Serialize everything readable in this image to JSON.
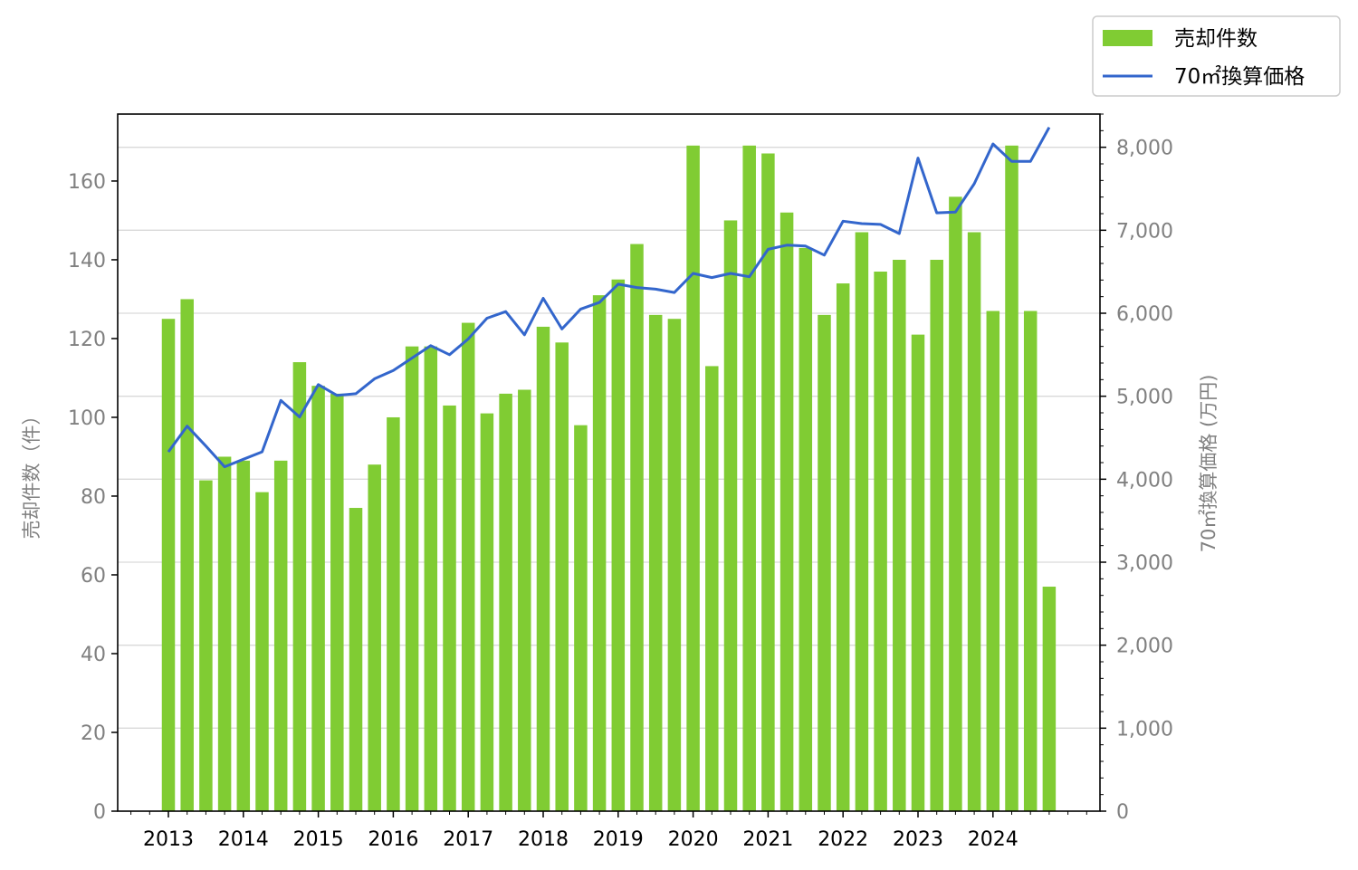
{
  "chart_data": {
    "type": "bar+line",
    "quarters_per_year": 4,
    "x_ticks": [
      "2013",
      "2014",
      "2015",
      "2016",
      "2017",
      "2018",
      "2019",
      "2020",
      "2021",
      "2022",
      "2023",
      "2024"
    ],
    "left_axis": {
      "label": "売却件数（件）",
      "ylim": [
        0,
        177
      ],
      "ticks": [
        0,
        20,
        40,
        60,
        80,
        100,
        120,
        140,
        160
      ],
      "tick_labels": [
        "0",
        "20",
        "40",
        "60",
        "80",
        "100",
        "120",
        "140",
        "160"
      ]
    },
    "right_axis": {
      "label": "70㎡換算価格 (万円)",
      "ylim": [
        0,
        8400
      ],
      "ticks": [
        0,
        1000,
        2000,
        3000,
        4000,
        5000,
        6000,
        7000,
        8000
      ],
      "tick_labels": [
        "0",
        "1,000",
        "2,000",
        "3,000",
        "4,000",
        "5,000",
        "6,000",
        "7,000",
        "8,000"
      ]
    },
    "series": [
      {
        "name": "売却件数",
        "type": "bar",
        "axis": "left",
        "color": "#80cc33",
        "values": [
          125,
          130,
          84,
          90,
          89,
          81,
          89,
          114,
          108,
          106,
          77,
          88,
          100,
          118,
          118,
          103,
          124,
          101,
          106,
          107,
          123,
          119,
          98,
          131,
          135,
          144,
          126,
          125,
          169,
          113,
          150,
          169,
          167,
          152,
          143,
          126,
          134,
          147,
          137,
          140,
          121,
          140,
          156,
          147,
          127,
          169,
          127,
          57
        ]
      },
      {
        "name": "70㎡換算価格",
        "type": "line",
        "axis": "right",
        "color": "#3366cc",
        "values": [
          4330,
          4640,
          4400,
          4150,
          4240,
          4330,
          4950,
          4750,
          5140,
          5010,
          5030,
          5210,
          5310,
          5460,
          5610,
          5500,
          5690,
          5940,
          6020,
          5740,
          6180,
          5810,
          6050,
          6130,
          6350,
          6310,
          6290,
          6250,
          6480,
          6430,
          6480,
          6440,
          6770,
          6820,
          6810,
          6700,
          7110,
          7080,
          7070,
          6960,
          7870,
          7210,
          7220,
          7560,
          8040,
          7830,
          7830,
          8240
        ]
      }
    ],
    "grid": "horizontal (right axis)",
    "legend": {
      "placement": "top-right outside"
    }
  }
}
